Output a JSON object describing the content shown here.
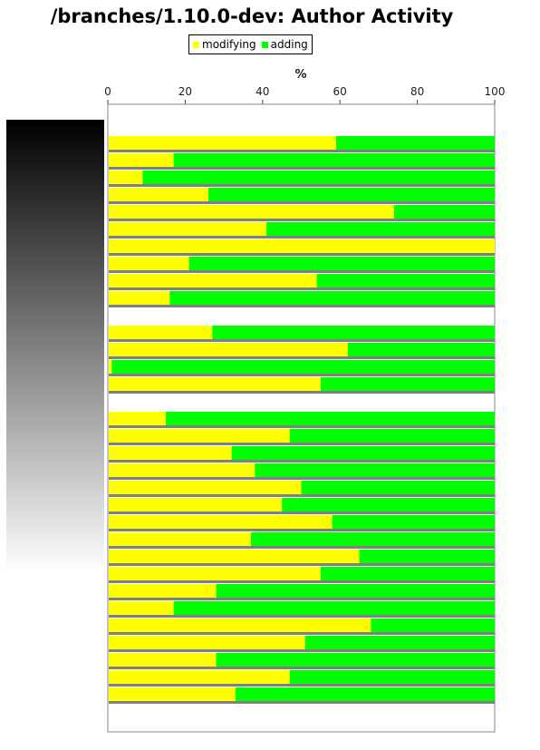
{
  "chart_data": {
    "type": "bar",
    "orientation": "horizontal",
    "stacked": true,
    "title": "/branches/1.10.0-dev: Author Activity",
    "xlabel": "%",
    "ylabel": "",
    "xlim": [
      0,
      100
    ],
    "xticks": [
      "0",
      "20",
      "40",
      "60",
      "80",
      "100"
    ],
    "legend_position": "top",
    "series": [
      {
        "name": "modifying",
        "color": "#ffff00"
      },
      {
        "name": "adding",
        "color": "#00ff00"
      }
    ],
    "values_modifying": [
      59,
      17,
      9,
      26,
      74,
      41,
      100,
      21,
      54,
      16,
      null,
      27,
      62,
      1,
      55,
      null,
      15,
      47,
      32,
      38,
      50,
      45,
      58,
      37,
      65,
      55,
      28,
      17,
      68,
      51,
      28,
      47,
      33
    ],
    "grid": false
  }
}
